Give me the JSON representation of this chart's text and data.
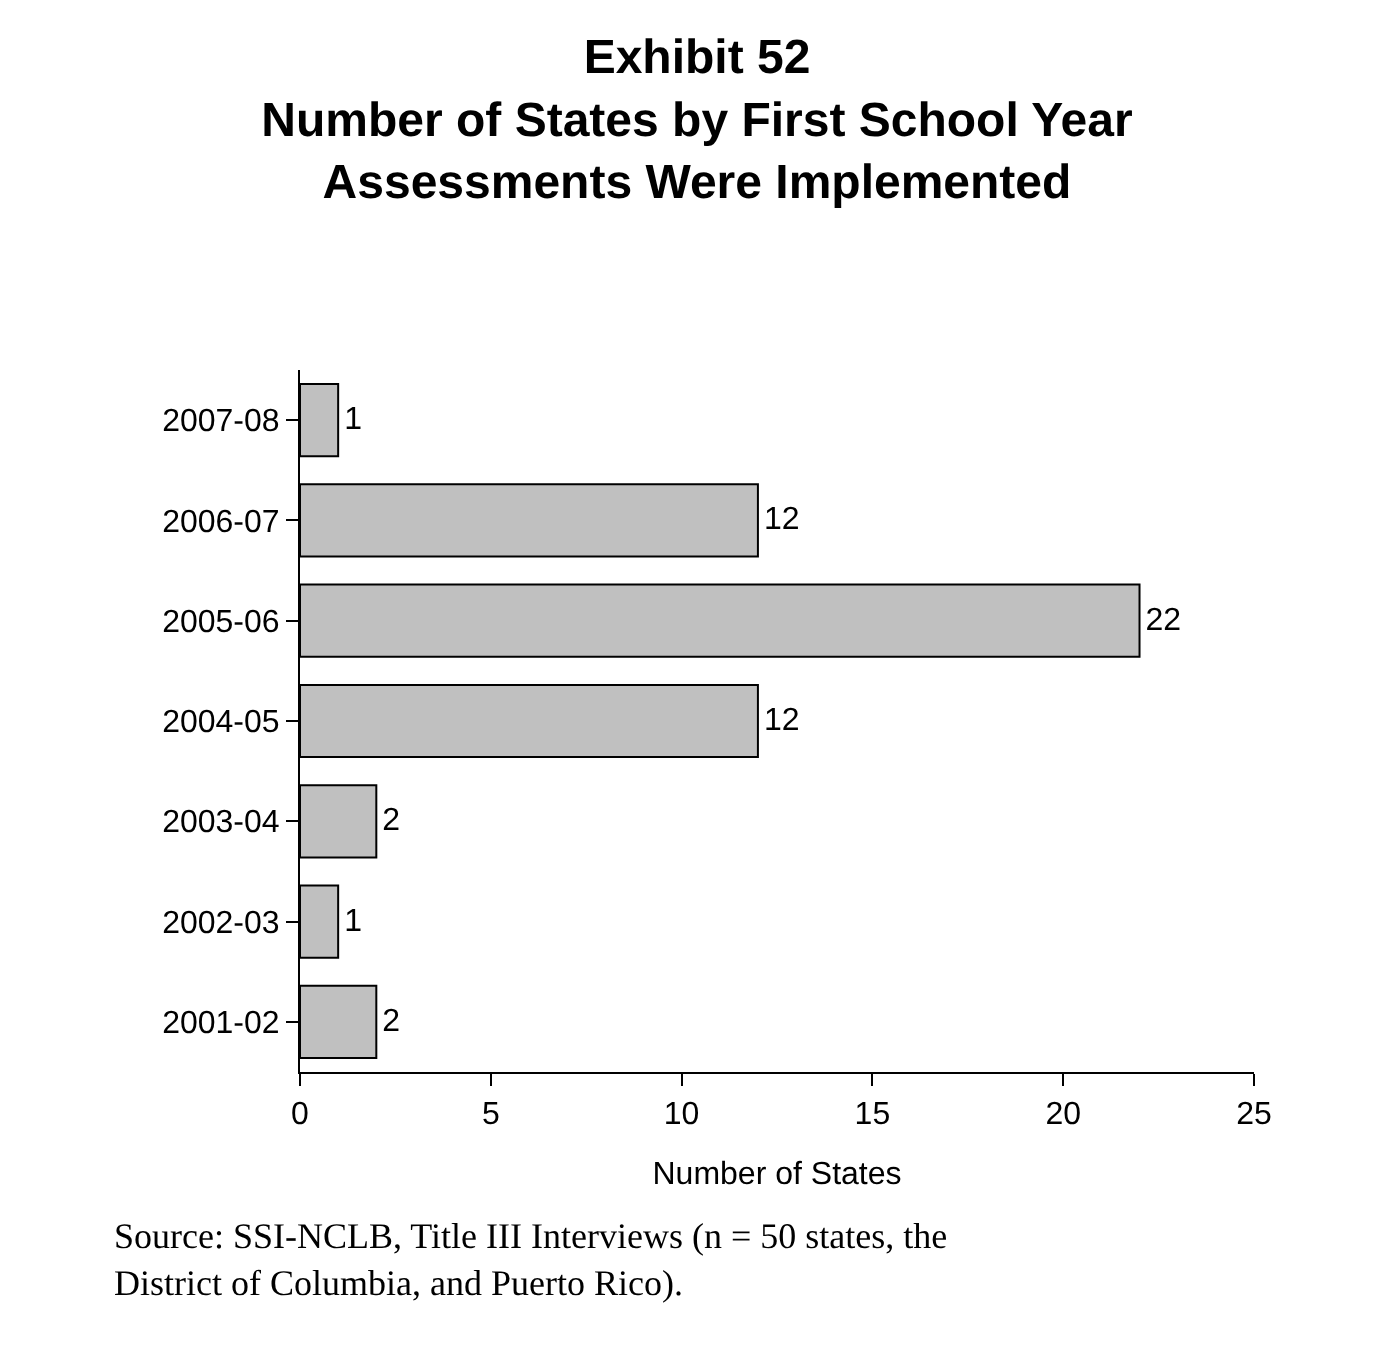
{
  "chart_data": {
    "type": "bar",
    "orientation": "horizontal",
    "title": "Exhibit 52\nNumber of States by First School Year\nAssessments Were Implemented",
    "categories": [
      "2007-08",
      "2006-07",
      "2005-06",
      "2004-05",
      "2003-04",
      "2002-03",
      "2001-02"
    ],
    "values": [
      1,
      12,
      22,
      12,
      2,
      1,
      2
    ],
    "color": "#c0c0c0",
    "xlim": [
      0,
      25
    ],
    "xticks": [
      0,
      5,
      10,
      15,
      20,
      25
    ],
    "xlabel": "Number of States",
    "data_labels": true,
    "annotations": [
      "Source: SSI-NCLB, Title III Interviews (n = 50 states, the\nDistrict of Columbia, and Puerto Rico)."
    ]
  }
}
